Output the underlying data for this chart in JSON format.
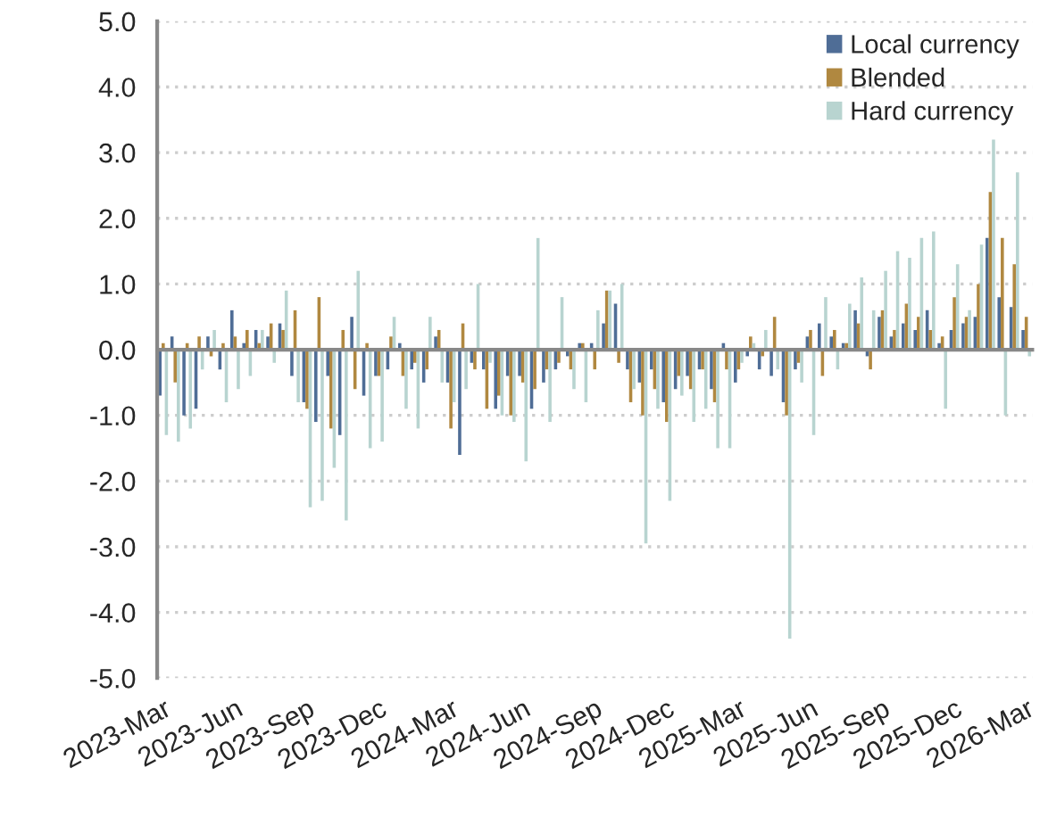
{
  "chart_data": {
    "type": "bar",
    "categories": [
      "2023-Mar",
      null,
      null,
      null,
      null,
      null,
      "2023-Jun",
      null,
      null,
      null,
      null,
      null,
      "2023-Sep",
      null,
      null,
      null,
      null,
      null,
      "2023-Dec",
      null,
      null,
      null,
      null,
      null,
      "2024-Mar",
      null,
      null,
      null,
      null,
      null,
      "2024-Jun",
      null,
      null,
      null,
      null,
      null,
      "2024-Sep",
      null,
      null,
      null,
      null,
      null,
      "2024-Dec",
      null,
      null,
      null,
      null,
      null,
      "2025-Mar",
      null,
      null,
      null,
      null,
      null,
      "2025-Jun",
      null,
      null,
      null,
      null,
      null,
      "2025-Sep",
      null,
      null,
      null,
      null,
      null,
      "2025-Dec",
      null,
      null,
      null,
      null,
      null,
      "2026-Mar"
    ],
    "series": [
      {
        "name": "Local currency",
        "color": "#4f6d96",
        "values": [
          -0.7,
          0.2,
          -1.0,
          -0.9,
          0.2,
          -0.3,
          0.6,
          0.1,
          0.3,
          0.2,
          0.4,
          -0.4,
          -0.8,
          -1.1,
          -0.4,
          -1.3,
          0.5,
          -0.7,
          -0.4,
          -0.3,
          0.1,
          -0.3,
          -0.5,
          0.2,
          -0.5,
          -1.6,
          -0.2,
          -0.3,
          -0.9,
          -0.4,
          -0.4,
          -0.9,
          -0.5,
          -0.3,
          -0.1,
          0.1,
          0.1,
          0.4,
          0.7,
          -0.3,
          -0.5,
          -0.3,
          -0.8,
          -0.6,
          -0.4,
          -0.3,
          -0.6,
          0.1,
          -0.5,
          -0.1,
          -0.3,
          -0.4,
          -0.8,
          -0.3,
          0.2,
          0.4,
          0.2,
          0.1,
          0.6,
          -0.1,
          0.5,
          0.2,
          0.4,
          0.3,
          0.6,
          0.1,
          0.3,
          0.4,
          0.5,
          1.7,
          0.8,
          0.65,
          0.3
        ]
      },
      {
        "name": "Blended",
        "color": "#b08840",
        "values": [
          0.1,
          -0.5,
          0.1,
          0.2,
          -0.1,
          0.1,
          0.2,
          0.3,
          0.1,
          0.4,
          0.3,
          0.6,
          -0.9,
          0.8,
          -1.2,
          0.3,
          -0.6,
          0.1,
          -0.4,
          0.2,
          -0.4,
          -0.2,
          -0.3,
          0.3,
          -1.2,
          0.4,
          -0.3,
          -0.9,
          -0.7,
          -1.0,
          -0.5,
          -0.6,
          -0.3,
          -0.2,
          -0.3,
          0.1,
          -0.3,
          0.9,
          -0.2,
          -0.8,
          -1.0,
          -0.6,
          -1.1,
          -0.4,
          -0.6,
          -0.3,
          -0.8,
          -0.3,
          -0.3,
          0.2,
          -0.1,
          0.5,
          -1.0,
          -0.2,
          0.3,
          -0.4,
          0.3,
          0.1,
          0.4,
          -0.3,
          0.6,
          0.3,
          0.7,
          0.5,
          0.3,
          0.2,
          0.8,
          0.5,
          1.0,
          2.4,
          1.7,
          1.3,
          0.5
        ]
      },
      {
        "name": "Hard currency",
        "color": "#b8d4d0",
        "values": [
          -1.3,
          -1.4,
          -1.2,
          -0.3,
          0.3,
          -0.8,
          -0.6,
          -0.4,
          0.3,
          -0.2,
          0.9,
          -0.8,
          -2.4,
          -2.3,
          -1.8,
          -2.6,
          1.2,
          -1.5,
          -1.4,
          0.5,
          -0.9,
          -1.2,
          0.5,
          -0.5,
          -0.8,
          -0.6,
          1.0,
          -0.2,
          -1.0,
          -1.1,
          -1.7,
          1.7,
          -1.1,
          0.8,
          -0.6,
          -0.8,
          0.6,
          0.9,
          1.0,
          -0.6,
          -2.95,
          -0.9,
          -2.3,
          -0.7,
          -1.1,
          -0.9,
          -1.5,
          -1.5,
          -0.2,
          0.1,
          0.3,
          -0.3,
          -4.4,
          -0.5,
          -1.3,
          0.8,
          -0.3,
          0.7,
          1.1,
          0.6,
          1.2,
          1.5,
          1.4,
          1.7,
          1.8,
          -0.9,
          1.3,
          0.6,
          1.6,
          3.2,
          -1.0,
          2.7,
          -0.1
        ]
      }
    ],
    "ylim": [
      -5,
      5
    ],
    "yticks": [
      {
        "value": -5,
        "label": "-5.0"
      },
      {
        "value": -4,
        "label": "-4.0"
      },
      {
        "value": -3,
        "label": "-3.0"
      },
      {
        "value": -2,
        "label": "-2.0"
      },
      {
        "value": -1,
        "label": "-1.0"
      },
      {
        "value": 0,
        "label": "0.0"
      },
      {
        "value": 1,
        "label": "1.0"
      },
      {
        "value": 2,
        "label": "2.0"
      },
      {
        "value": 3,
        "label": "3.0"
      },
      {
        "value": 4,
        "label": "4.0"
      },
      {
        "value": 5,
        "label": "5.0"
      }
    ],
    "grid": "y",
    "legend": "top right"
  }
}
